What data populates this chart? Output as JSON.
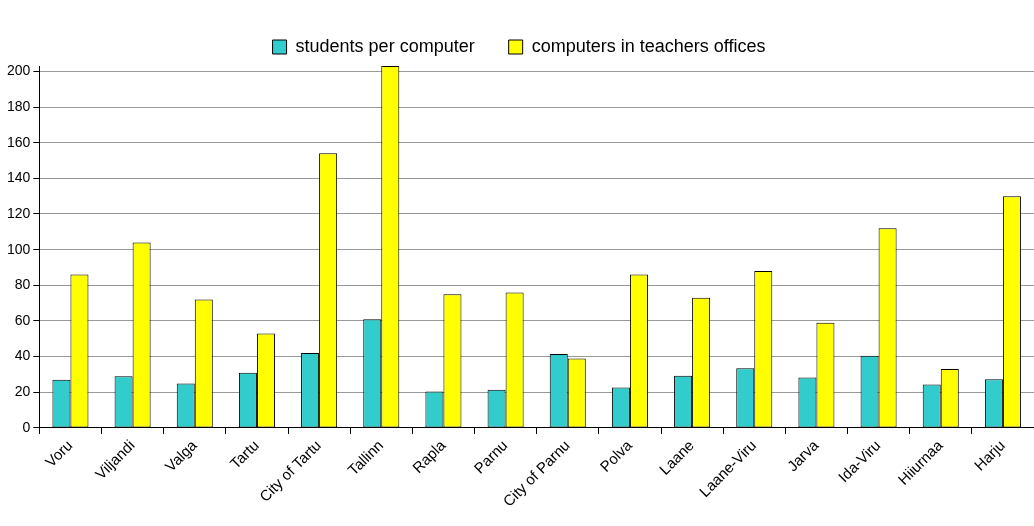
{
  "chart_data": {
    "type": "bar",
    "categories": [
      "Voru",
      "Viljandi",
      "Valga",
      "Tartu",
      "City of Tartu",
      "Tallinn",
      "Rapla",
      "Parnu",
      "City of Parnu",
      "Polva",
      "Laane",
      "Laane-Viru",
      "Jarva",
      "Ida-Viru",
      "Hiiurnaa",
      "Harju"
    ],
    "series": [
      {
        "name": "students per computer",
        "color": "#33cccc",
        "values": [
          27,
          29,
          25,
          31,
          42,
          61,
          20.5,
          21.5,
          41.5,
          22.7,
          29.3,
          33.5,
          28.3,
          40.5,
          24.4,
          27.3
        ]
      },
      {
        "name": "computers in teachers offices",
        "color": "#ffff00",
        "values": [
          86,
          104,
          72,
          53,
          154,
          203,
          75,
          76,
          39,
          86,
          73,
          88,
          59,
          112,
          33,
          130
        ]
      }
    ],
    "ylim": [
      0,
      203
    ],
    "yticks": [
      0,
      20,
      40,
      60,
      80,
      100,
      120,
      140,
      160,
      180,
      200
    ],
    "grid": "y",
    "legend": "top"
  }
}
